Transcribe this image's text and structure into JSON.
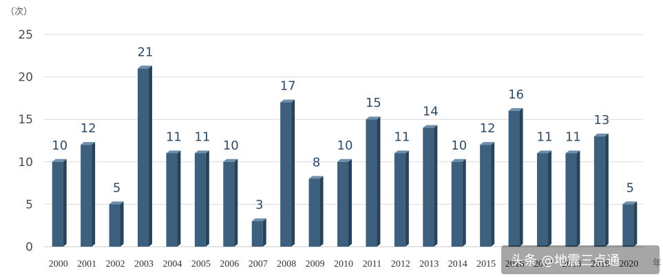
{
  "chart_data": {
    "type": "bar",
    "ylabel": "（次）",
    "x_suffix": "年",
    "categories": [
      "2000",
      "2001",
      "2002",
      "2003",
      "2004",
      "2005",
      "2006",
      "2007",
      "2008",
      "2009",
      "2010",
      "2011",
      "2012",
      "2013",
      "2014",
      "2015",
      "2016",
      "2017",
      "2018",
      "2019",
      "2020"
    ],
    "values": [
      10,
      12,
      5,
      21,
      11,
      11,
      10,
      3,
      17,
      8,
      10,
      15,
      11,
      14,
      10,
      12,
      16,
      11,
      11,
      13,
      5
    ],
    "ylim": [
      0,
      25
    ],
    "yticks": [
      0,
      5,
      10,
      15,
      20,
      25
    ],
    "grid": true,
    "legend": "none",
    "colors": {
      "bar_front": "#3d607f",
      "bar_side": "#27435c",
      "bar_top": "#6f8ea9",
      "grid": "#d9d9d9",
      "label": "#2f4a66"
    }
  },
  "watermark": {
    "text": "头条 @地震三点通"
  }
}
